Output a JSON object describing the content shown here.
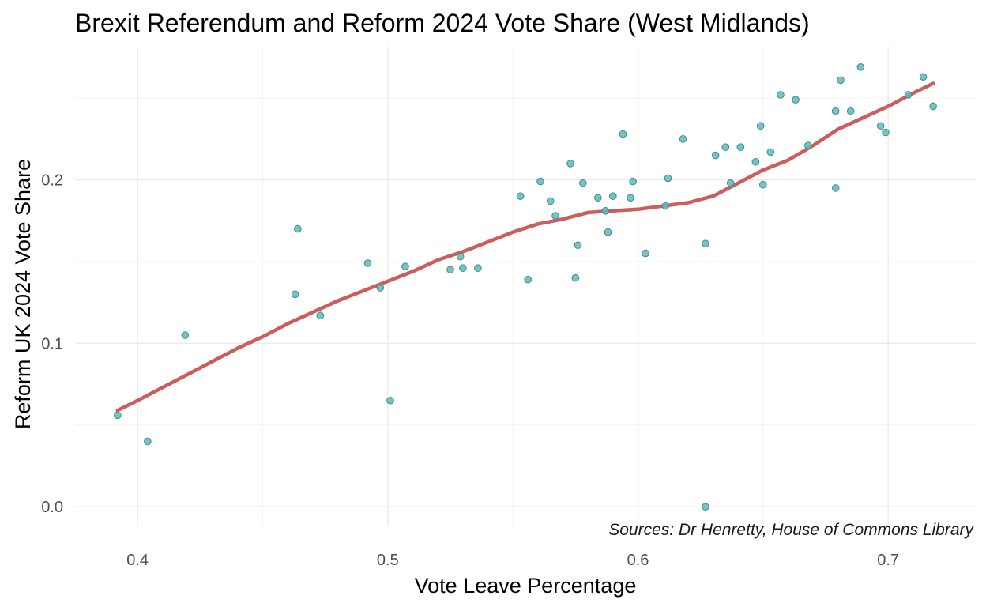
{
  "chart_data": {
    "type": "scatter",
    "title": "Brexit Referendum and Reform 2024 Vote Share (West Midlands)",
    "xlabel": "Vote Leave Percentage",
    "ylabel": "Reform UK 2024 Vote Share",
    "caption": "Sources: Dr Henretty, House of Commons Library",
    "xlim": [
      0.375,
      0.735
    ],
    "ylim": [
      -0.012,
      0.281
    ],
    "x_ticks": [
      0.4,
      0.5,
      0.6,
      0.7
    ],
    "x_tick_labels": [
      "0.4",
      "0.5",
      "0.6",
      "0.7"
    ],
    "y_ticks": [
      0.0,
      0.1,
      0.2
    ],
    "y_tick_labels": [
      "0.0",
      "0.1",
      "0.2"
    ],
    "x_minor": [
      0.45,
      0.55,
      0.65
    ],
    "y_minor": [
      0.05,
      0.15,
      0.25
    ],
    "grid": true,
    "legend": "none",
    "colors": {
      "points": "#5fb8b8",
      "point_outline": "#3e8f8f",
      "smooth_line": "#cd5c5c",
      "grid": "#ebebeb"
    },
    "points": [
      {
        "x": 0.392,
        "y": 0.056
      },
      {
        "x": 0.404,
        "y": 0.04
      },
      {
        "x": 0.419,
        "y": 0.105
      },
      {
        "x": 0.463,
        "y": 0.13
      },
      {
        "x": 0.464,
        "y": 0.17
      },
      {
        "x": 0.473,
        "y": 0.117
      },
      {
        "x": 0.492,
        "y": 0.149
      },
      {
        "x": 0.497,
        "y": 0.134
      },
      {
        "x": 0.501,
        "y": 0.065
      },
      {
        "x": 0.507,
        "y": 0.147
      },
      {
        "x": 0.525,
        "y": 0.145
      },
      {
        "x": 0.529,
        "y": 0.153
      },
      {
        "x": 0.53,
        "y": 0.146
      },
      {
        "x": 0.536,
        "y": 0.146
      },
      {
        "x": 0.553,
        "y": 0.19
      },
      {
        "x": 0.556,
        "y": 0.139
      },
      {
        "x": 0.561,
        "y": 0.199
      },
      {
        "x": 0.565,
        "y": 0.187
      },
      {
        "x": 0.567,
        "y": 0.178
      },
      {
        "x": 0.573,
        "y": 0.21
      },
      {
        "x": 0.575,
        "y": 0.14
      },
      {
        "x": 0.576,
        "y": 0.16
      },
      {
        "x": 0.578,
        "y": 0.198
      },
      {
        "x": 0.584,
        "y": 0.189
      },
      {
        "x": 0.587,
        "y": 0.181
      },
      {
        "x": 0.588,
        "y": 0.168
      },
      {
        "x": 0.59,
        "y": 0.19
      },
      {
        "x": 0.594,
        "y": 0.228
      },
      {
        "x": 0.597,
        "y": 0.189
      },
      {
        "x": 0.598,
        "y": 0.199
      },
      {
        "x": 0.603,
        "y": 0.155
      },
      {
        "x": 0.611,
        "y": 0.184
      },
      {
        "x": 0.612,
        "y": 0.201
      },
      {
        "x": 0.618,
        "y": 0.225
      },
      {
        "x": 0.627,
        "y": 0.0
      },
      {
        "x": 0.627,
        "y": 0.161
      },
      {
        "x": 0.631,
        "y": 0.215
      },
      {
        "x": 0.635,
        "y": 0.22
      },
      {
        "x": 0.637,
        "y": 0.198
      },
      {
        "x": 0.641,
        "y": 0.22
      },
      {
        "x": 0.647,
        "y": 0.211
      },
      {
        "x": 0.649,
        "y": 0.233
      },
      {
        "x": 0.65,
        "y": 0.197
      },
      {
        "x": 0.653,
        "y": 0.217
      },
      {
        "x": 0.657,
        "y": 0.252
      },
      {
        "x": 0.663,
        "y": 0.249
      },
      {
        "x": 0.668,
        "y": 0.221
      },
      {
        "x": 0.679,
        "y": 0.195
      },
      {
        "x": 0.679,
        "y": 0.242
      },
      {
        "x": 0.681,
        "y": 0.261
      },
      {
        "x": 0.685,
        "y": 0.242
      },
      {
        "x": 0.689,
        "y": 0.269
      },
      {
        "x": 0.697,
        "y": 0.233
      },
      {
        "x": 0.699,
        "y": 0.229
      },
      {
        "x": 0.708,
        "y": 0.252
      },
      {
        "x": 0.714,
        "y": 0.263
      },
      {
        "x": 0.718,
        "y": 0.245
      }
    ],
    "smooth": [
      {
        "x": 0.392,
        "y": 0.059
      },
      {
        "x": 0.4,
        "y": 0.065
      },
      {
        "x": 0.41,
        "y": 0.073
      },
      {
        "x": 0.42,
        "y": 0.081
      },
      {
        "x": 0.43,
        "y": 0.089
      },
      {
        "x": 0.44,
        "y": 0.097
      },
      {
        "x": 0.45,
        "y": 0.104
      },
      {
        "x": 0.46,
        "y": 0.112
      },
      {
        "x": 0.47,
        "y": 0.119
      },
      {
        "x": 0.48,
        "y": 0.126
      },
      {
        "x": 0.49,
        "y": 0.132
      },
      {
        "x": 0.5,
        "y": 0.138
      },
      {
        "x": 0.51,
        "y": 0.144
      },
      {
        "x": 0.52,
        "y": 0.151
      },
      {
        "x": 0.53,
        "y": 0.156
      },
      {
        "x": 0.54,
        "y": 0.162
      },
      {
        "x": 0.55,
        "y": 0.168
      },
      {
        "x": 0.56,
        "y": 0.173
      },
      {
        "x": 0.57,
        "y": 0.176
      },
      {
        "x": 0.58,
        "y": 0.18
      },
      {
        "x": 0.59,
        "y": 0.181
      },
      {
        "x": 0.6,
        "y": 0.182
      },
      {
        "x": 0.61,
        "y": 0.184
      },
      {
        "x": 0.62,
        "y": 0.186
      },
      {
        "x": 0.63,
        "y": 0.19
      },
      {
        "x": 0.64,
        "y": 0.198
      },
      {
        "x": 0.65,
        "y": 0.206
      },
      {
        "x": 0.66,
        "y": 0.212
      },
      {
        "x": 0.67,
        "y": 0.221
      },
      {
        "x": 0.68,
        "y": 0.231
      },
      {
        "x": 0.69,
        "y": 0.238
      },
      {
        "x": 0.7,
        "y": 0.245
      },
      {
        "x": 0.71,
        "y": 0.253
      },
      {
        "x": 0.718,
        "y": 0.259
      }
    ]
  }
}
